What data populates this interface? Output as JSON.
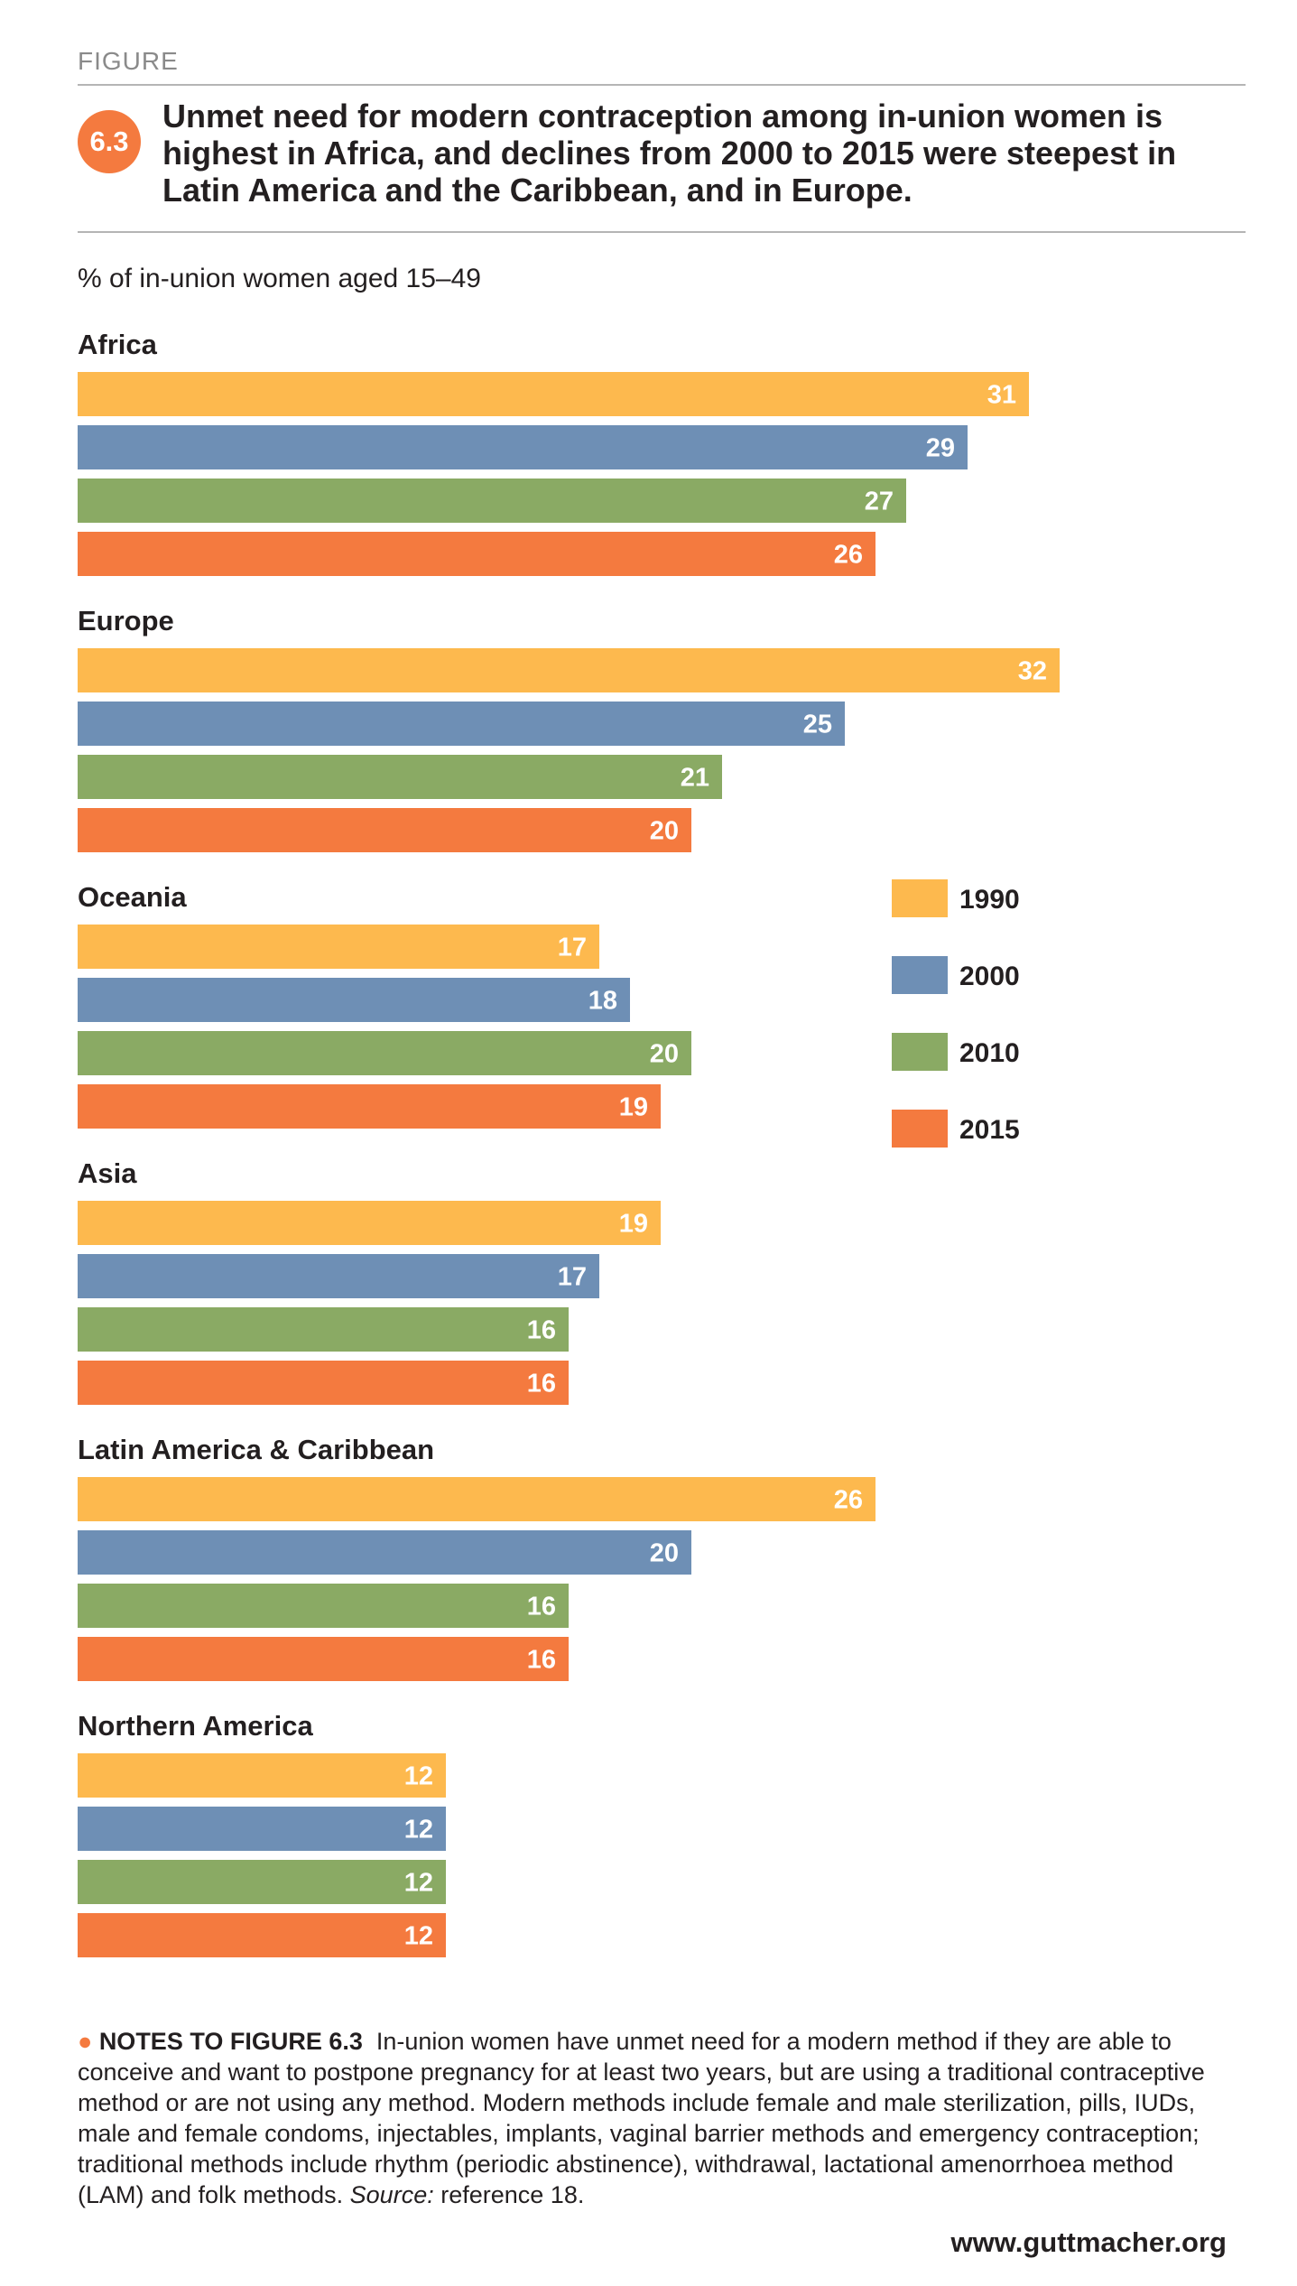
{
  "header": {
    "figure_label": "FIGURE",
    "figure_number": "6.3",
    "title": "Unmet need for modern contraception among in-union women is highest in Africa, and declines from 2000 to 2015 were steepest in Latin America and the Caribbean, and in Europe."
  },
  "chart_data": {
    "type": "bar",
    "orientation": "horizontal",
    "subtitle": "% of in-union women aged 15–49",
    "categories": [
      "Africa",
      "Europe",
      "Oceania",
      "Asia",
      "Latin America & Caribbean",
      "Northern America"
    ],
    "series": [
      {
        "name": "1990",
        "color": "#fdb94e",
        "values": [
          31,
          32,
          17,
          19,
          26,
          12
        ]
      },
      {
        "name": "2000",
        "color": "#6e8fb5",
        "values": [
          29,
          25,
          18,
          17,
          20,
          12
        ]
      },
      {
        "name": "2010",
        "color": "#8aaa64",
        "values": [
          27,
          21,
          20,
          16,
          16,
          12
        ]
      },
      {
        "name": "2015",
        "color": "#f47a3f",
        "values": [
          26,
          20,
          19,
          16,
          16,
          12
        ]
      }
    ],
    "data_labels": true,
    "legend_position": "right",
    "grid": false
  },
  "notes": {
    "heading": "NOTES TO FIGURE 6.3",
    "text": "In-union women have unmet need for a modern method if they are able to conceive and want to postpone pregnancy for at least two years, but are using a traditional contraceptive method or are not using any method. Modern methods include female and male sterilization, pills, IUDs, male and female condoms, injectables, implants, vaginal barrier methods and emergency contraception; traditional methods include rhythm (periodic abstinence), withdrawal, lactational amenorrhoea method (LAM) and folk methods.",
    "source_label": "Source:",
    "source_text": "reference 18."
  },
  "footer": {
    "url": "www.guttmacher.org"
  }
}
